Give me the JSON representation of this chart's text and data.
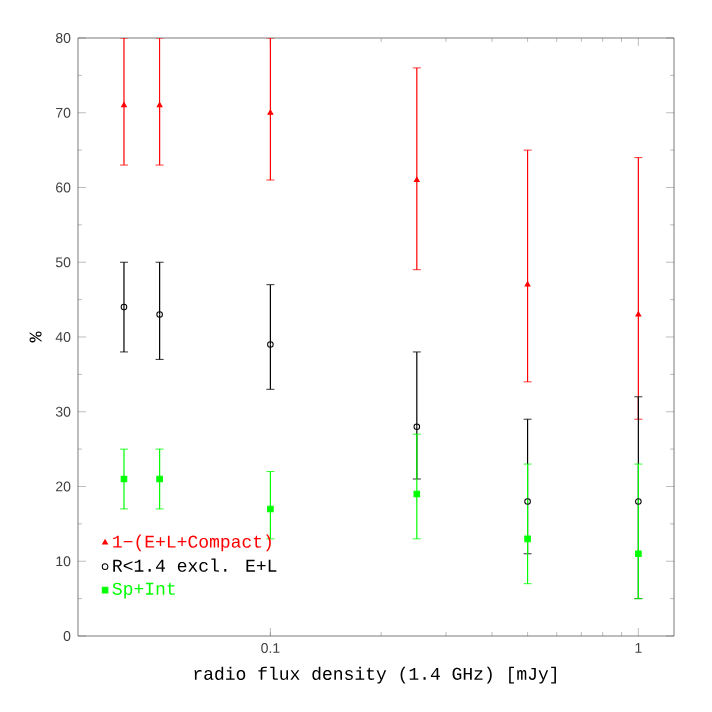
{
  "chart_data": {
    "type": "scatter",
    "xlabel": "radio flux density (1.4 GHz) [mJy]",
    "ylabel": "%",
    "log": "x",
    "xlim": [
      0.03,
      1.25
    ],
    "ylim": [
      0,
      80
    ],
    "xticks": [
      0.1,
      1
    ],
    "yticks": [
      0,
      10,
      20,
      30,
      40,
      50,
      60,
      70,
      80
    ],
    "legend": "bottom left",
    "grid": false,
    "series": [
      {
        "name": "1−(E+L+Compact)",
        "color": "#ff0000",
        "marker": "triangle",
        "x": [
          0.04,
          0.05,
          0.1,
          0.25,
          0.5,
          1
        ],
        "values": [
          71,
          71,
          70,
          61,
          47,
          43
        ],
        "errors": [
          [
            63,
            80
          ],
          [
            63,
            80
          ],
          [
            61,
            80
          ],
          [
            49,
            76
          ],
          [
            34,
            65
          ],
          [
            29,
            64
          ]
        ]
      },
      {
        "name": "R<1.4 excl. E+L",
        "color": "#000000",
        "marker": "circle",
        "x": [
          0.04,
          0.05,
          0.1,
          0.25,
          0.5,
          1
        ],
        "values": [
          44,
          43,
          39,
          28,
          18,
          18
        ],
        "errors": [
          [
            38,
            50
          ],
          [
            37,
            50
          ],
          [
            33,
            47
          ],
          [
            21,
            38
          ],
          [
            11,
            29
          ],
          [
            5,
            32
          ]
        ]
      },
      {
        "name": "Sp+Int",
        "color": "#00ff00",
        "marker": "square",
        "x": [
          0.04,
          0.05,
          0.1,
          0.25,
          0.5,
          1
        ],
        "values": [
          21,
          21,
          17,
          19,
          13,
          11
        ],
        "errors": [
          [
            17,
            25
          ],
          [
            17,
            25
          ],
          [
            13,
            22
          ],
          [
            13,
            27
          ],
          [
            7,
            23
          ],
          [
            5,
            23
          ]
        ]
      }
    ]
  }
}
